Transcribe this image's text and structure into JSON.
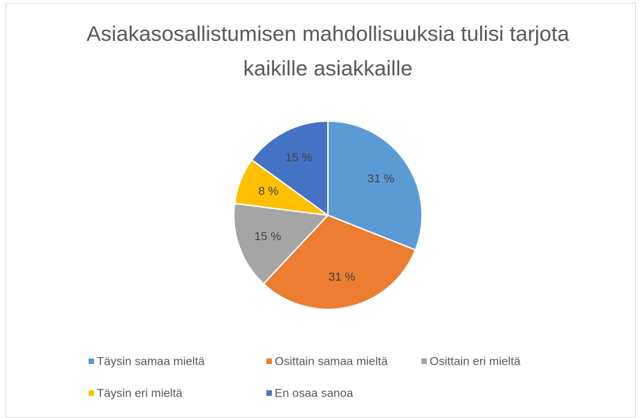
{
  "chart_data": {
    "type": "pie",
    "title": "Asiakasosallistumisen mahdollisuuksia tulisi tarjota kaikille asiakkaille",
    "categories": [
      "Täysin samaa mieltä",
      "Osittain samaa mieltä",
      "Osittain eri mieltä",
      "Täysin eri mieltä",
      "En osaa sanoa"
    ],
    "values": [
      31,
      31,
      15,
      8,
      15
    ],
    "value_labels": [
      "31 %",
      "31 %",
      "15 %",
      "8 %",
      "15 %"
    ],
    "colors": [
      "#5b9bd5",
      "#ed7d31",
      "#a5a5a5",
      "#ffc000",
      "#4472c4"
    ],
    "legend": "bottom"
  }
}
